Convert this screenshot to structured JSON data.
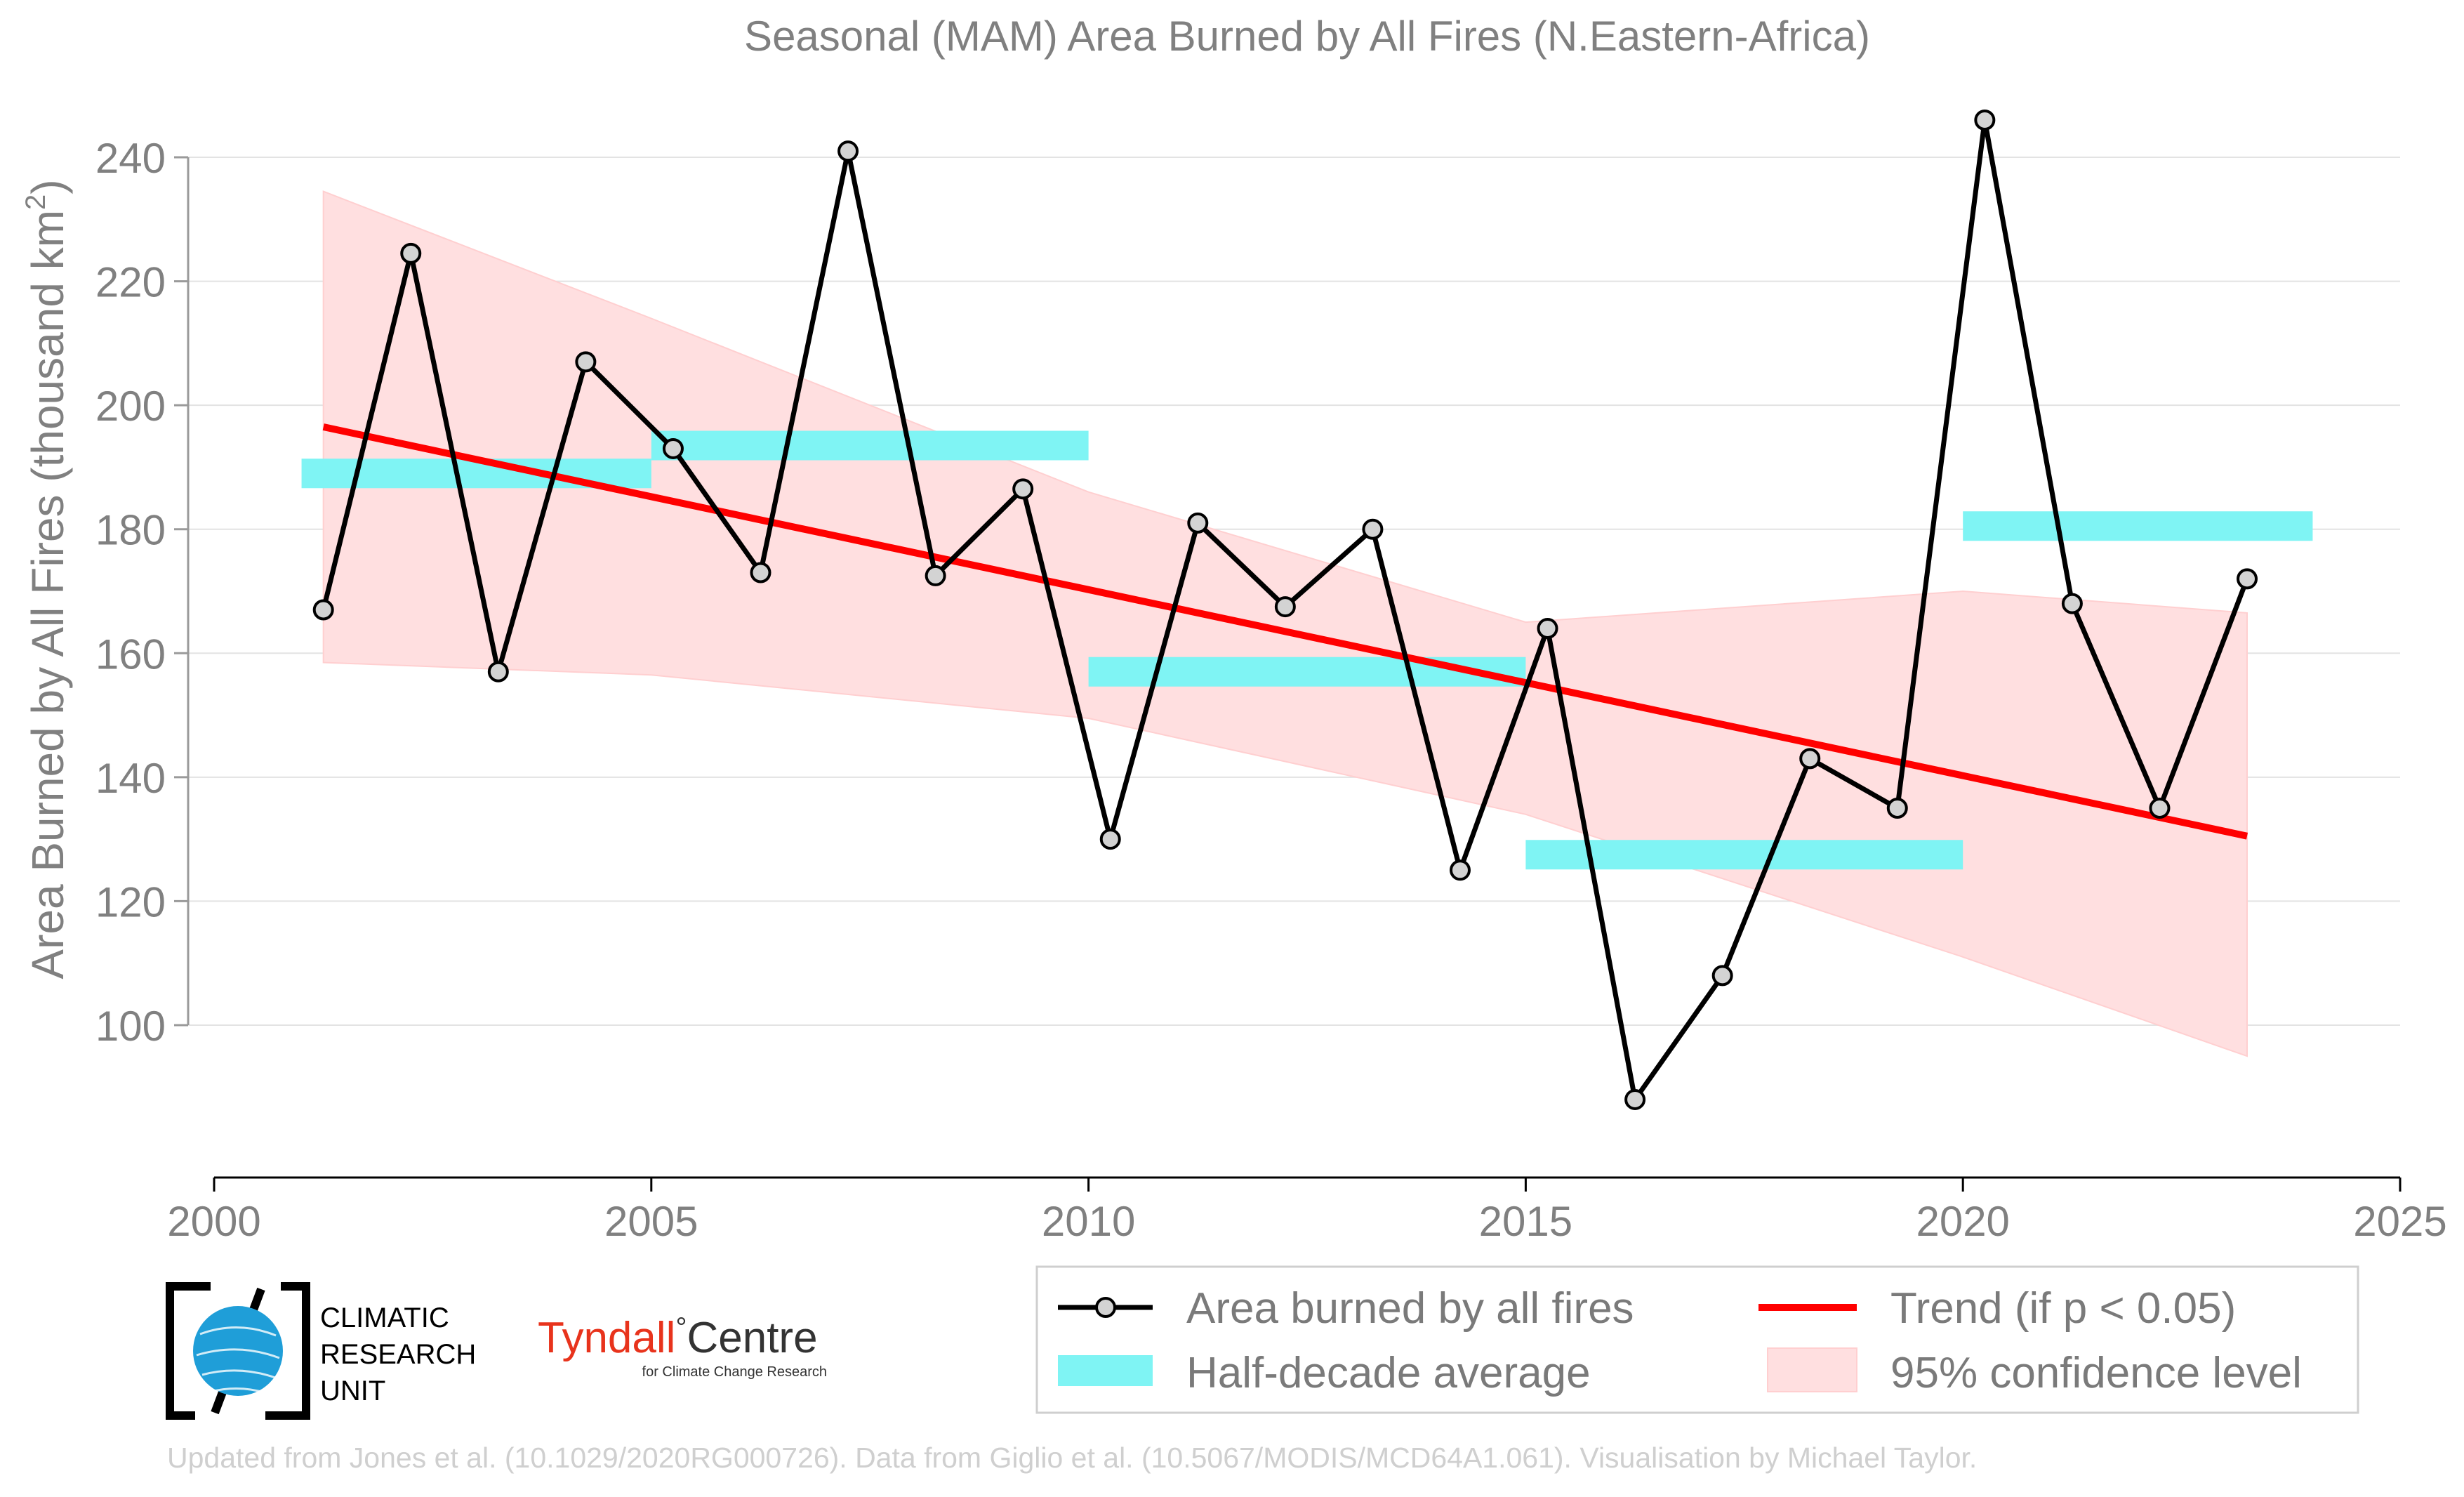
{
  "chart_data": {
    "type": "line",
    "title": "Seasonal (MAM) Area Burned by All Fires (N.Eastern-Africa)",
    "ylabel": "Area Burned by All Fires (thousand km",
    "ylabel_superscript": "2",
    "ylabel_close": ")",
    "xlabel": "",
    "xlim": [
      2000,
      2025
    ],
    "ylim": [
      78,
      254
    ],
    "x_ticks": [
      2000,
      2005,
      2010,
      2015,
      2020,
      2025
    ],
    "y_ticks": [
      100,
      120,
      140,
      160,
      180,
      200,
      220,
      240
    ],
    "grid": "horizontal",
    "legend_position": "bottom-right",
    "series": [
      {
        "name": "Area burned by all fires",
        "color": "#000000",
        "marker_fill": "#d3d3d3",
        "x": [
          2001.25,
          2002.25,
          2003.25,
          2004.25,
          2005.25,
          2006.25,
          2007.25,
          2008.25,
          2009.25,
          2010.25,
          2011.25,
          2012.25,
          2013.25,
          2014.25,
          2015.25,
          2016.25,
          2017.25,
          2018.25,
          2019.25,
          2020.25,
          2021.25,
          2022.25,
          2023.25
        ],
        "values": [
          167,
          224.5,
          157,
          207,
          193,
          173,
          241,
          172.5,
          186.5,
          130,
          181,
          167.5,
          180,
          125,
          164,
          88,
          108,
          143,
          135,
          246,
          168,
          135,
          172
        ]
      },
      {
        "name": "Half-decade average",
        "color": "#7ff4f4",
        "type": "segments",
        "segments": [
          {
            "x0": 2001,
            "x1": 2005,
            "value": 189
          },
          {
            "x0": 2005,
            "x1": 2010,
            "value": 193.5
          },
          {
            "x0": 2010,
            "x1": 2015,
            "value": 157
          },
          {
            "x0": 2015,
            "x1": 2020,
            "value": 127.5
          },
          {
            "x0": 2020,
            "x1": 2024,
            "value": 180.5
          }
        ]
      },
      {
        "name": "Trend (if p < 0.05)",
        "color": "#ff0000",
        "x": [
          2001.25,
          2023.25
        ],
        "values": [
          196.5,
          130.5
        ]
      },
      {
        "name": "95% confidence level",
        "color": "#ffdfe0",
        "type": "band",
        "x": [
          2001.25,
          2005,
          2010,
          2015,
          2020,
          2023.25
        ],
        "lower": [
          158.5,
          156.5,
          149.5,
          134,
          111,
          95
        ],
        "upper": [
          234.5,
          214,
          186,
          165,
          170,
          166.5
        ]
      }
    ]
  },
  "logos": {
    "cru_line1": "CLIMATIC",
    "cru_line2": "RESEARCH",
    "cru_line3": "UNIT",
    "tyndall_name": "Tyndall",
    "tyndall_degree": "°",
    "tyndall_centre": "Centre",
    "tyndall_sub": "for Climate Change Research"
  },
  "credits": "Updated from Jones et al. (10.1029/2020RG000726). Data from Giglio et al. (10.5067/MODIS/MCD64A1.061). Visualisation by Michael Taylor."
}
